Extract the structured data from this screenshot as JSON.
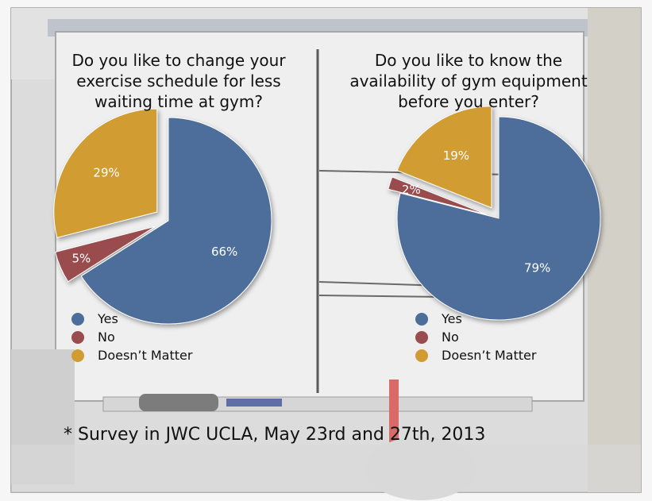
{
  "colors": {
    "yes": "#4d6d9a",
    "no": "#9a4c4e",
    "doesnt_matter": "#d19d33"
  },
  "legend": {
    "yes": "Yes",
    "no": "No",
    "doesnt_matter": "Doesn’t Matter"
  },
  "footnote": "* Survey in JWC UCLA, May 23rd and 27th, 2013",
  "chart_data": [
    {
      "type": "pie",
      "title": "Do you like to change your exercise schedule for less waiting time at gym?",
      "categories": [
        "Yes",
        "No",
        "Doesn’t Matter"
      ],
      "values": [
        66,
        5,
        29
      ],
      "labels": [
        "66%",
        "5%",
        "29%"
      ],
      "exploded": [
        "No",
        "Doesn’t Matter"
      ],
      "legend_position": "bottom-left"
    },
    {
      "type": "pie",
      "title": "Do you like to know the availability of gym equipment before you enter?",
      "categories": [
        "Yes",
        "No",
        "Doesn’t Matter"
      ],
      "values": [
        79,
        2,
        19
      ],
      "labels": [
        "79%",
        "2%",
        "19%"
      ],
      "exploded": [
        "No",
        "Doesn’t Matter"
      ],
      "legend_position": "bottom-left"
    }
  ]
}
